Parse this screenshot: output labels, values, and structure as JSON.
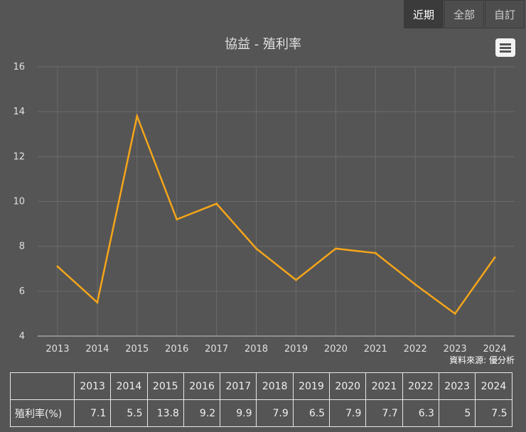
{
  "range_tabs": [
    {
      "label": "近期",
      "active": true
    },
    {
      "label": "全部",
      "active": false
    },
    {
      "label": "自訂",
      "active": false
    }
  ],
  "menu_icon": "hamburger-menu-icon",
  "source_note": "資料來源: 優分析",
  "colors": {
    "line": "#f5a51a",
    "background": "#555555",
    "grid": "#6b6b6b"
  },
  "chart_data": {
    "type": "line",
    "title": "協益 - 殖利率",
    "categories": [
      "2013",
      "2014",
      "2015",
      "2016",
      "2017",
      "2018",
      "2019",
      "2020",
      "2021",
      "2022",
      "2023",
      "2024"
    ],
    "series": [
      {
        "name": "殖利率(%)",
        "values": [
          7.1,
          5.5,
          13.8,
          9.2,
          9.9,
          7.9,
          6.5,
          7.9,
          7.7,
          6.3,
          5,
          7.5
        ]
      }
    ],
    "ylim": [
      4,
      16
    ],
    "yticks": [
      4,
      6,
      8,
      10,
      12,
      14,
      16
    ],
    "grid": true,
    "legend": "none"
  },
  "table": {
    "row_label": "殖利率(%)",
    "years": [
      "2013",
      "2014",
      "2015",
      "2016",
      "2017",
      "2018",
      "2019",
      "2020",
      "2021",
      "2022",
      "2023",
      "2024"
    ],
    "values": [
      "7.1",
      "5.5",
      "13.8",
      "9.2",
      "9.9",
      "7.9",
      "6.5",
      "7.9",
      "7.7",
      "6.3",
      "5",
      "7.5"
    ]
  }
}
